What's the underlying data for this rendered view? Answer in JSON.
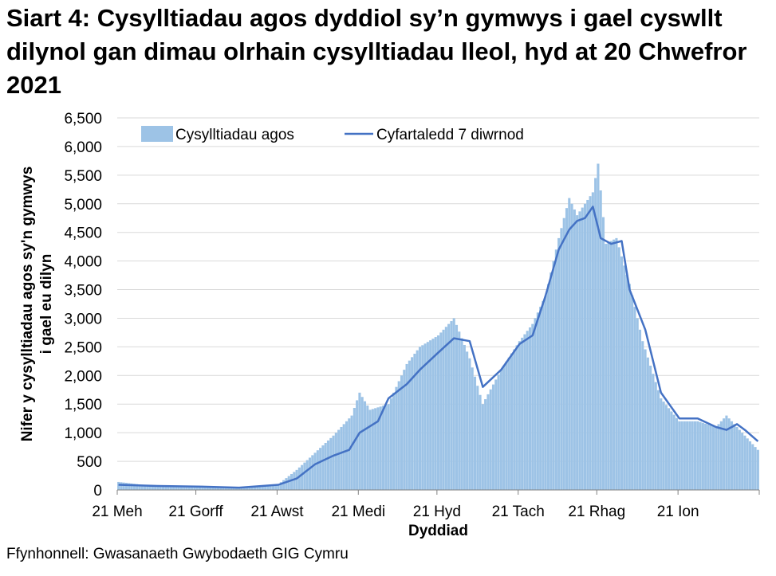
{
  "chart_data": {
    "type": "bar",
    "title": "Siart 4: Cysylltiadau agos dyddiol sy’n gymwys i gael cyswllt dilynol gan dimau olrhain cysylltiadau lleol, hyd at 20 Chwefror 2021",
    "xlabel": "Dyddiad",
    "ylabel": [
      "Nifer y cysylltiadau agos sy'n gymwys",
      "i gael eu dilyn"
    ],
    "ylim": [
      0,
      6500
    ],
    "yticks": [
      "0",
      "500",
      "1,000",
      "1,500",
      "2,000",
      "2,500",
      "3,000",
      "3,500",
      "4,000",
      "4,500",
      "5,000",
      "5,500",
      "6,000",
      "6,500"
    ],
    "x_start": "2020-06-21",
    "x_end": "2021-02-20",
    "xtick_labels": [
      "21 Meh",
      "21 Gorff",
      "21 Awst",
      "21 Medi",
      "21 Hyd",
      "21 Tach",
      "21 Rhag",
      "21 Ion"
    ],
    "xtick_dates": [
      "2020-06-21",
      "2020-07-21",
      "2020-08-21",
      "2020-09-21",
      "2020-10-21",
      "2020-11-21",
      "2020-12-21",
      "2021-01-21"
    ],
    "grid": true,
    "legend_position": "top",
    "colors": {
      "bars": "#9dc3e6",
      "line": "#4472c4"
    },
    "series": [
      {
        "name": "Cysylltiadau agos",
        "type": "bar",
        "x": [
          "2020-06-21",
          "2020-07-06",
          "2020-07-21",
          "2020-08-06",
          "2020-08-21",
          "2020-08-28",
          "2020-09-04",
          "2020-09-11",
          "2020-09-18",
          "2020-09-21",
          "2020-09-25",
          "2020-10-02",
          "2020-10-09",
          "2020-10-14",
          "2020-10-21",
          "2020-10-27",
          "2020-11-02",
          "2020-11-07",
          "2020-11-14",
          "2020-11-21",
          "2020-11-26",
          "2020-12-01",
          "2020-12-06",
          "2020-12-10",
          "2020-12-13",
          "2020-12-16",
          "2020-12-19",
          "2020-12-21",
          "2020-12-24",
          "2020-12-28",
          "2021-01-02",
          "2021-01-07",
          "2021-01-14",
          "2021-01-21",
          "2021-01-28",
          "2021-02-04",
          "2021-02-08",
          "2021-02-12",
          "2021-02-20"
        ],
        "values": [
          140,
          60,
          60,
          40,
          100,
          350,
          650,
          950,
          1300,
          1700,
          1400,
          1500,
          2200,
          2500,
          2700,
          3000,
          2300,
          1500,
          2100,
          2600,
          2900,
          3400,
          4400,
          5100,
          4800,
          5000,
          5200,
          5700,
          4300,
          4400,
          3600,
          2600,
          1600,
          1200,
          1200,
          1100,
          1300,
          1100,
          700
        ]
      },
      {
        "name": "Cyfartaledd 7 diwrnod",
        "type": "line",
        "x": [
          "2020-06-21",
          "2020-07-06",
          "2020-07-21",
          "2020-08-06",
          "2020-08-21",
          "2020-08-28",
          "2020-09-04",
          "2020-09-11",
          "2020-09-17",
          "2020-09-21",
          "2020-09-28",
          "2020-10-02",
          "2020-10-09",
          "2020-10-14",
          "2020-10-21",
          "2020-10-27",
          "2020-11-02",
          "2020-11-07",
          "2020-11-14",
          "2020-11-21",
          "2020-11-26",
          "2020-12-01",
          "2020-12-06",
          "2020-12-10",
          "2020-12-13",
          "2020-12-16",
          "2020-12-19",
          "2020-12-22",
          "2020-12-26",
          "2020-12-30",
          "2021-01-02",
          "2021-01-08",
          "2021-01-14",
          "2021-01-21",
          "2021-01-28",
          "2021-02-04",
          "2021-02-08",
          "2021-02-12",
          "2021-02-15",
          "2021-02-20"
        ],
        "values": [
          90,
          70,
          60,
          40,
          90,
          200,
          450,
          600,
          700,
          1000,
          1200,
          1600,
          1850,
          2100,
          2400,
          2650,
          2600,
          1800,
          2100,
          2550,
          2700,
          3400,
          4200,
          4550,
          4700,
          4750,
          4950,
          4400,
          4300,
          4350,
          3500,
          2800,
          1700,
          1250,
          1250,
          1100,
          1050,
          1150,
          1050,
          850
        ]
      }
    ]
  },
  "source": "Ffynhonnell: Gwasanaeth Gwybodaeth GIG Cymru"
}
